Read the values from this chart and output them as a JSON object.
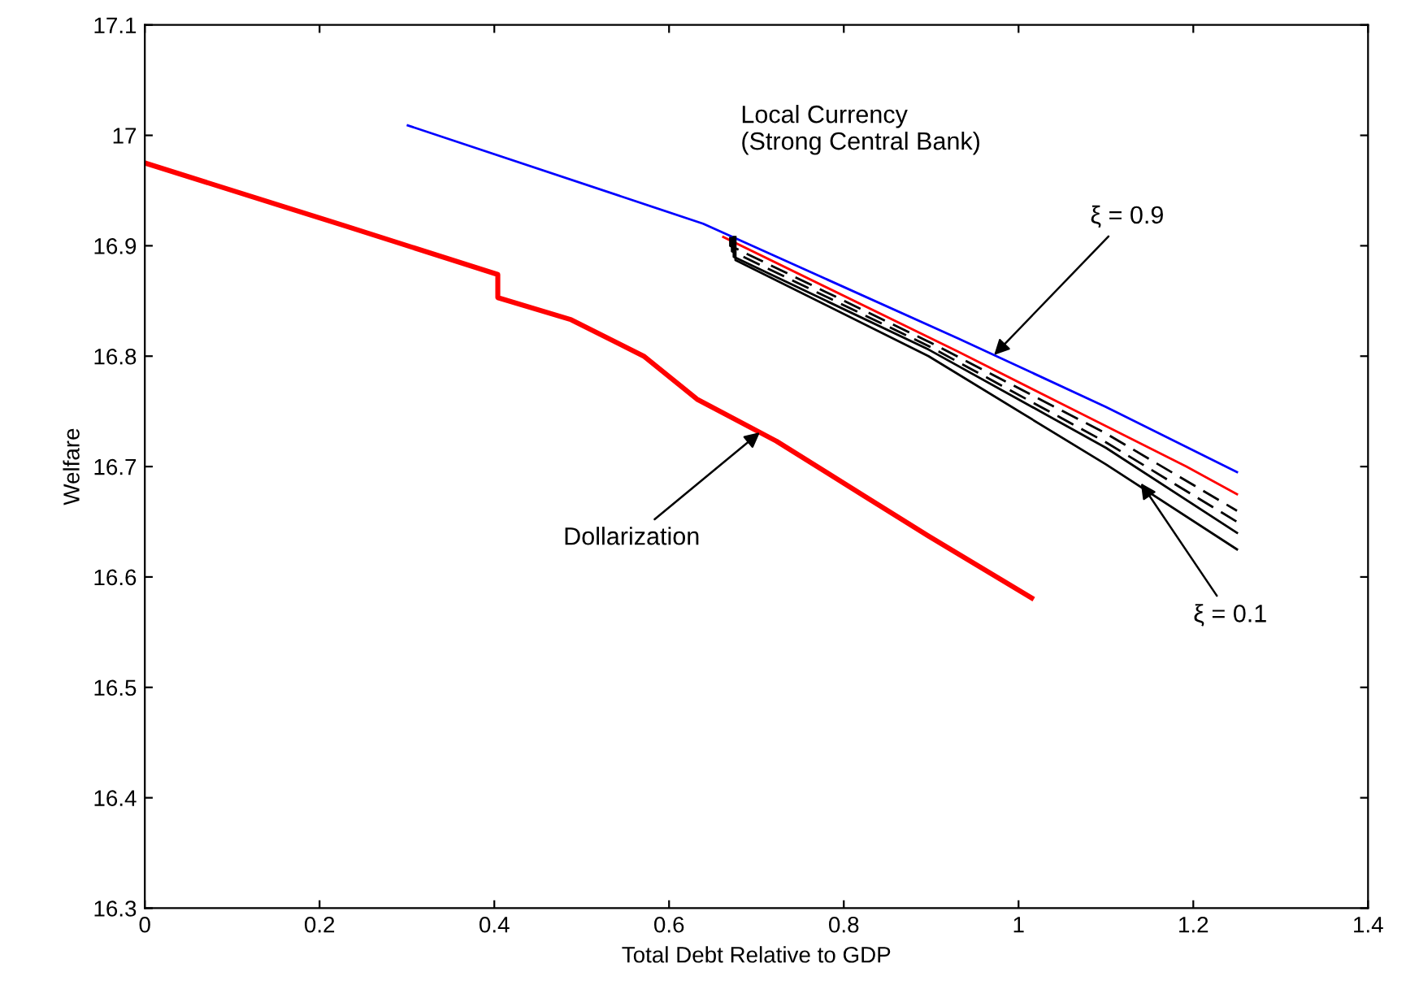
{
  "chart_data": {
    "type": "line",
    "xlabel": "Total Debt Relative to GDP",
    "ylabel": "Welfare",
    "xlim": [
      0,
      1.4
    ],
    "ylim": [
      16.3,
      17.1
    ],
    "xticks": [
      0,
      0.2,
      0.4,
      0.6,
      0.8,
      1,
      1.2,
      1.4
    ],
    "yticks": [
      16.3,
      16.4,
      16.5,
      16.6,
      16.7,
      16.8,
      16.9,
      17,
      17.1
    ],
    "grid": false,
    "legend": false,
    "marker": "none",
    "series": [
      {
        "color": "#ff0000",
        "line_style": "solid",
        "x": [
          0,
          0.229,
          0.404,
          0.404,
          0.488,
          0.571,
          0.632,
          0.723,
          0.822,
          0.897,
          1.015
        ],
        "values": [
          16.975,
          16.918,
          16.874,
          16.853,
          16.833,
          16.8,
          16.761,
          16.723,
          16.674,
          16.637,
          16.581
        ]
      },
      {
        "color": "#0000ff",
        "line_style": "solid",
        "x": [
          0.301,
          0.639,
          0.931,
          1.1,
          1.25
        ],
        "values": [
          17.009,
          16.92,
          16.816,
          16.754,
          16.695
        ]
      },
      {
        "color": "#ff0000",
        "line_style": "solid",
        "x": [
          0.662,
          0.931,
          1.192,
          1.25
        ],
        "values": [
          16.908,
          16.804,
          16.7,
          16.675
        ]
      },
      {
        "color": "#000000",
        "line_style": "dashed",
        "x": [
          0.67,
          0.67,
          0.9,
          1.1,
          1.25
        ],
        "values": [
          16.908,
          16.9,
          16.812,
          16.73,
          16.66
        ]
      },
      {
        "color": "#000000",
        "line_style": "dashed",
        "x": [
          0.672,
          0.672,
          0.9,
          1.1,
          1.25
        ],
        "values": [
          16.908,
          16.895,
          16.808,
          16.722,
          16.65
        ]
      },
      {
        "color": "#000000",
        "line_style": "solid",
        "x": [
          0.674,
          0.674,
          0.897,
          1.1,
          1.25
        ],
        "values": [
          16.908,
          16.89,
          16.806,
          16.717,
          16.64
        ]
      },
      {
        "color": "#000000",
        "line_style": "solid",
        "x": [
          0.676,
          0.676,
          0.897,
          1.1,
          1.25
        ],
        "values": [
          16.908,
          16.887,
          16.8,
          16.702,
          16.625
        ]
      }
    ],
    "annotations": [
      "Local Currency\n(Strong Central Bank)",
      {
        "text": "ξ = 0.9",
        "x": 0.972,
        "y": 16.801
      },
      {
        "text": "ξ = 0.1",
        "x": 1.14,
        "y": 16.685
      },
      {
        "text": "Dollarization",
        "x": 0.704,
        "y": 16.731
      }
    ]
  }
}
